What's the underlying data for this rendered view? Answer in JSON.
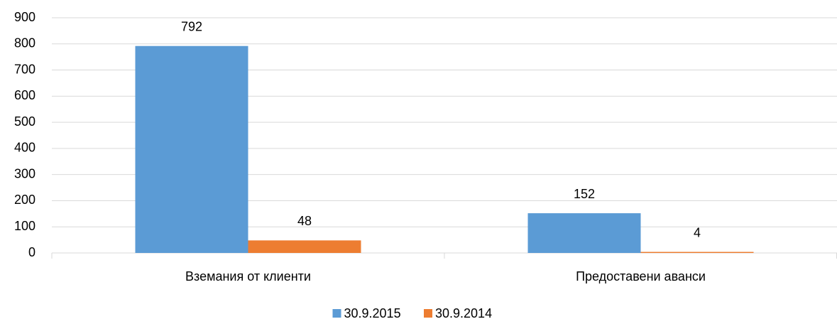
{
  "chart_data": {
    "type": "bar",
    "categories": [
      "Вземания от клиенти",
      "Предоставени аванси"
    ],
    "series": [
      {
        "name": "30.9.2015",
        "color": "#5b9bd5",
        "values": [
          792,
          152
        ]
      },
      {
        "name": "30.9.2014",
        "color": "#ed7d31",
        "values": [
          48,
          4
        ]
      }
    ],
    "ylim": [
      0,
      900
    ],
    "yticks": [
      0,
      100,
      200,
      300,
      400,
      500,
      600,
      700,
      800,
      900
    ],
    "grid": true,
    "data_labels": true,
    "legend": "bottom"
  }
}
